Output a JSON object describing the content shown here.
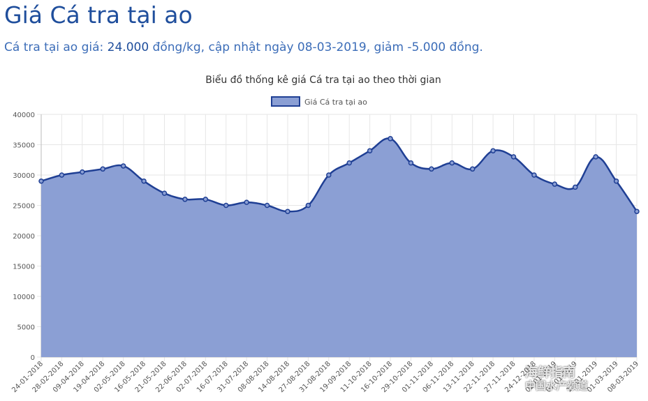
{
  "header": {
    "title": "Giá Cá tra tại ao",
    "subtitle_prefix": "Cá tra tại ao giá: ",
    "subtitle_price": "24.000",
    "subtitle_rest": " đồng/kg, cập nhật ngày 08-03-2019, giảm -5.000 đồng."
  },
  "watermark": {
    "line1": "海鲜指南",
    "line2": "中国水产频道"
  },
  "colors": {
    "line": "#1f3f94",
    "fill": "#8b9fd4",
    "grid": "#e6e6e6"
  },
  "chart_data": {
    "type": "area",
    "title": "Biểu đồ thống kê giá Cá tra tại ao theo thời gian",
    "legend": "Giá Cá tra tại ao",
    "legend_position": "top",
    "ylim": [
      0,
      40000
    ],
    "yticks": [
      0,
      5000,
      10000,
      15000,
      20000,
      25000,
      30000,
      35000,
      40000
    ],
    "grid": true,
    "x": [
      "24-01-2018",
      "28-02-2018",
      "09-04-2018",
      "19-04-2018",
      "02-05-2018",
      "16-05-2018",
      "21-05-2018",
      "22-06-2018",
      "02-07-2018",
      "16-07-2018",
      "31-07-2018",
      "08-08-2018",
      "14-08-2018",
      "27-08-2018",
      "31-08-2018",
      "19-09-2018",
      "11-10-2018",
      "16-10-2018",
      "29-10-2018",
      "01-11-2018",
      "06-11-2018",
      "13-11-2018",
      "22-11-2018",
      "27-11-2018",
      "24-12-2018",
      "02-01-2019",
      "07-01-2019",
      "11-01-2019",
      "01-03-2019",
      "08-03-2019"
    ],
    "values": [
      29000,
      30000,
      30500,
      31000,
      31500,
      29000,
      27000,
      26000,
      26000,
      25000,
      25500,
      25000,
      24000,
      25000,
      30000,
      32000,
      34000,
      36000,
      32000,
      31000,
      32000,
      31000,
      34000,
      33000,
      30000,
      28500,
      28000,
      33000,
      29000,
      24000
    ]
  }
}
